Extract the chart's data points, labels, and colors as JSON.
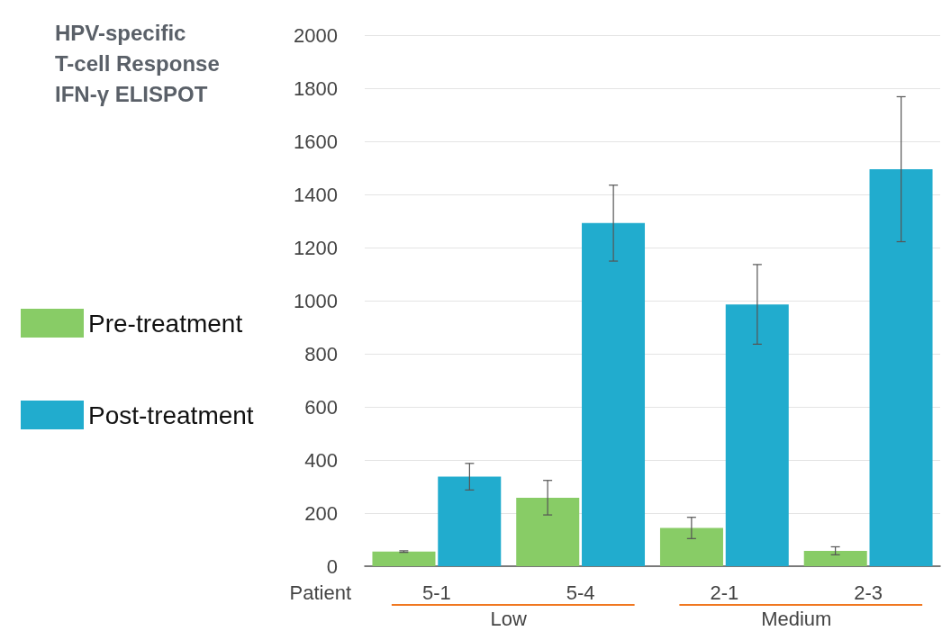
{
  "chart_data": {
    "type": "bar",
    "title": "HPV-specific\nT-cell Response\nIFN-γ ELISPOT",
    "xlabel": "Patient",
    "categories": [
      "5-1",
      "5-4",
      "2-1",
      "2-3"
    ],
    "series": [
      {
        "name": "Pre-treatment",
        "color": "#88cc66",
        "values": [
          55,
          258,
          144,
          58
        ],
        "errors": [
          3,
          65,
          40,
          15
        ]
      },
      {
        "name": "Post-treatment",
        "color": "#21acce",
        "values": [
          337,
          1292,
          986,
          1495
        ],
        "errors": [
          50,
          143,
          150,
          273
        ]
      }
    ],
    "ylim": [
      0,
      2000
    ],
    "yticks": [
      0,
      200,
      400,
      600,
      800,
      1000,
      1200,
      1400,
      1600,
      1800,
      2000
    ],
    "grid": "y",
    "legend": "left",
    "annotations": [
      "Low",
      "Medium"
    ]
  }
}
